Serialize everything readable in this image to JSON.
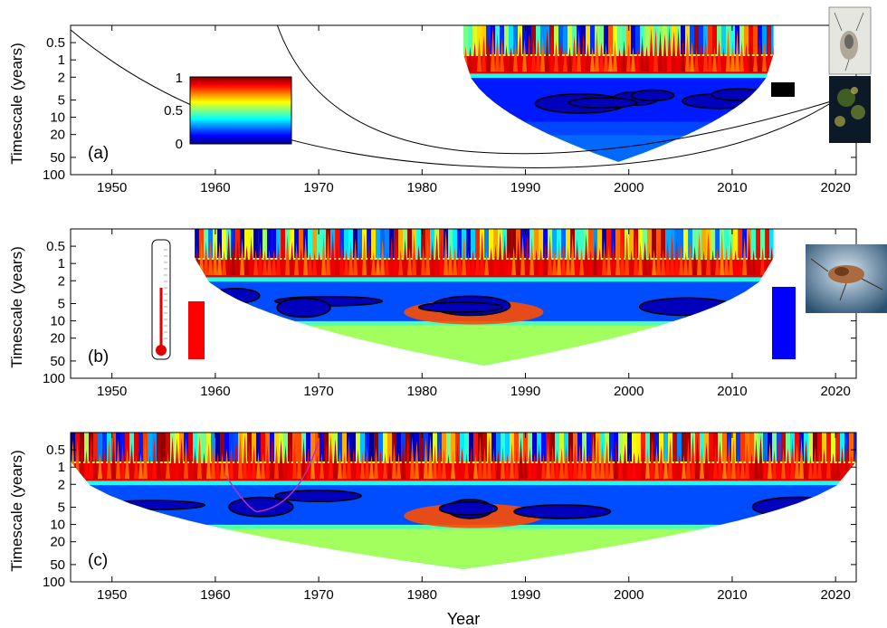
{
  "figure": {
    "colors": {
      "jet": [
        "#00008f",
        "#0000ff",
        "#0080ff",
        "#00ffff",
        "#80ff80",
        "#ffff00",
        "#ff8000",
        "#ff0000",
        "#800000"
      ],
      "axis": "#000000",
      "thermometer_bar": "#ff0000",
      "zooplankton_bar": "#0000ff",
      "phenology_bar": "#000000",
      "magenta_curve": "#c030c0"
    },
    "icons": {
      "panel_a_photo_top": "copepod-photo",
      "panel_a_photo_bottom": "plankton-photo",
      "panel_b_photo": "zooplankton-photo",
      "panel_b_thermometer": "thermometer-icon"
    }
  },
  "chart_data": [
    {
      "type": "heatmap",
      "panel_label": "(a)",
      "xlabel": "",
      "ylabel": "Timescale (years)",
      "xlim": [
        1946,
        2022
      ],
      "x_ticks": [
        1950,
        1960,
        1970,
        1980,
        1990,
        2000,
        2010,
        2020
      ],
      "y_scale": "log",
      "ylim": [
        0.25,
        100
      ],
      "y_ticks": [
        0.5,
        1,
        2,
        5,
        10,
        20,
        50,
        100
      ],
      "y_tick_labels": [
        "0.5",
        "1",
        "2",
        "5",
        "10",
        "20",
        "50",
        "100"
      ],
      "data_x_range": [
        1984,
        2014
      ],
      "colorbar": {
        "ticks": [
          "0",
          "0.5",
          "1"
        ],
        "range": [
          0,
          1
        ],
        "colormap": "jet"
      },
      "coherence_bands": [
        {
          "period_range": [
            0.25,
            0.8
          ],
          "value": "mixed"
        },
        {
          "period_range": [
            0.8,
            1.6
          ],
          "value": 0.9
        },
        {
          "period_range": [
            2,
            20
          ],
          "value": 0.15
        }
      ]
    },
    {
      "type": "heatmap",
      "panel_label": "(b)",
      "xlabel": "",
      "ylabel": "Timescale (years)",
      "xlim": [
        1946,
        2022
      ],
      "x_ticks": [
        1950,
        1960,
        1970,
        1980,
        1990,
        2000,
        2010,
        2020
      ],
      "y_scale": "log",
      "ylim": [
        0.25,
        100
      ],
      "y_ticks": [
        0.5,
        1,
        2,
        5,
        10,
        20,
        50,
        100
      ],
      "y_tick_labels": [
        "0.5",
        "1",
        "2",
        "5",
        "10",
        "20",
        "50",
        "100"
      ],
      "data_x_range": [
        1958,
        2014
      ],
      "coherence_bands": [
        {
          "period_range": [
            0.25,
            0.8
          ],
          "value": "mixed"
        },
        {
          "period_range": [
            0.8,
            1.6
          ],
          "value": 0.9
        },
        {
          "period_range": [
            2,
            10
          ],
          "value": 0.2
        },
        {
          "period_range": [
            5,
            10
          ],
          "x_range": [
            1980,
            1990
          ],
          "value": 0.8
        },
        {
          "period_range": [
            10,
            50
          ],
          "value": 0.45
        }
      ]
    },
    {
      "type": "heatmap",
      "panel_label": "(c)",
      "xlabel": "Year",
      "ylabel": "Timescale (years)",
      "xlim": [
        1946,
        2022
      ],
      "x_ticks": [
        1950,
        1960,
        1970,
        1980,
        1990,
        2000,
        2010,
        2020
      ],
      "y_scale": "log",
      "ylim": [
        0.25,
        100
      ],
      "y_ticks": [
        0.5,
        1,
        2,
        5,
        10,
        20,
        50,
        100
      ],
      "y_tick_labels": [
        "0.5",
        "1",
        "2",
        "5",
        "10",
        "20",
        "50",
        "100"
      ],
      "data_x_range": [
        1946,
        2022
      ],
      "coherence_bands": [
        {
          "period_range": [
            0.25,
            0.8
          ],
          "value": "mixed"
        },
        {
          "period_range": [
            0.8,
            1.6
          ],
          "value": 0.9
        },
        {
          "period_range": [
            2,
            10
          ],
          "value": 0.2
        },
        {
          "period_range": [
            5,
            10
          ],
          "x_range": [
            1980,
            1990
          ],
          "value": 0.8
        },
        {
          "period_range": [
            10,
            50
          ],
          "value": 0.45
        }
      ]
    }
  ]
}
